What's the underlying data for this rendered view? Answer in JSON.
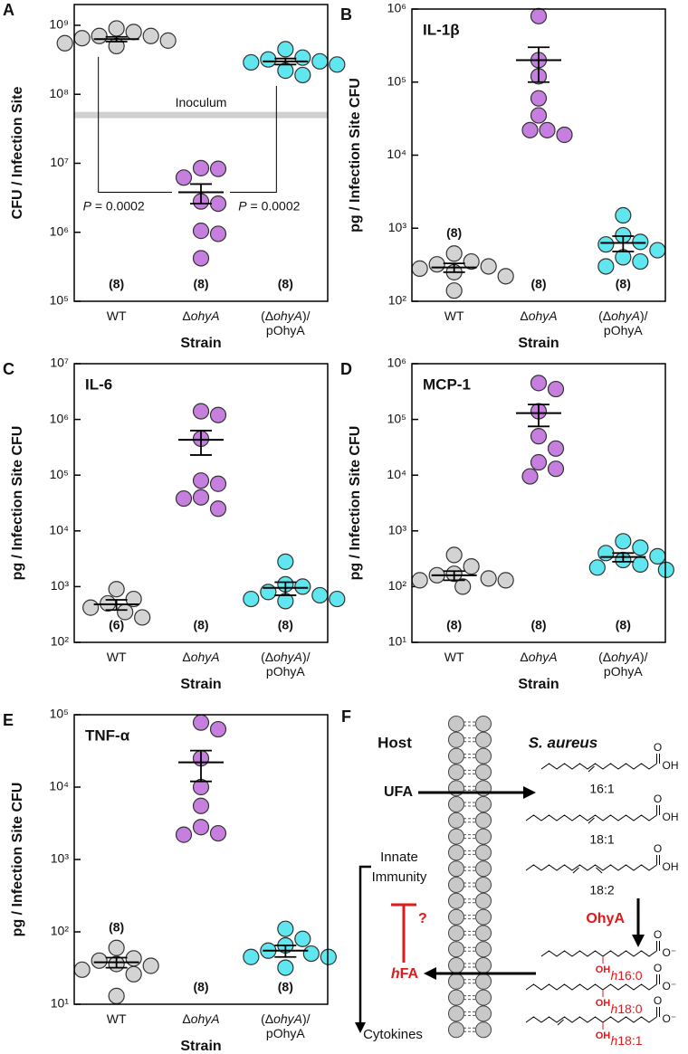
{
  "chart_data": [
    {
      "type": "scatter_mean_sem",
      "panel": "A",
      "y_label": "CFU / Infection Site",
      "x_label": "Strain",
      "categories": [
        "WT",
        "ΔohyA",
        "(ΔohyA)/pOhyA"
      ],
      "colors": [
        "#d3d3d3",
        "#c77fdf",
        "#5fe6ee"
      ],
      "points": [
        [
          900000000.0,
          800000000.0,
          700000000.0,
          700000000.0,
          650000000.0,
          600000000.0,
          550000000.0,
          500000000.0
        ],
        [
          8500000.0,
          8300000.0,
          6200000.0,
          2800000.0,
          2600000.0,
          1050000.0,
          950000.0,
          420000.0
        ],
        [
          450000000.0,
          340000000.0,
          320000000.0,
          300000000.0,
          290000000.0,
          270000000.0,
          220000000.0,
          190000000.0
        ]
      ],
      "means": [
        630000000.0,
        3800000.0,
        300000000.0
      ],
      "sems": [
        50000000.0,
        1200000.0,
        30000000.0
      ],
      "n_labels": [
        "(8)",
        "(8)",
        "(8)"
      ],
      "log_y": true,
      "ylim": [
        100000.0,
        2000000000.0
      ],
      "yticks": [
        {
          "value": 100000.0,
          "label": "10⁵"
        },
        {
          "value": 1000000.0,
          "label": "10⁶"
        },
        {
          "value": 10000000.0,
          "label": "10⁷"
        },
        {
          "value": 100000000.0,
          "label": "10⁸"
        },
        {
          "value": 1000000000.0,
          "label": "10⁹"
        }
      ],
      "reference_line": {
        "value": 50000000.0,
        "label": "Inoculum"
      },
      "annotations": [
        "P = 0.0002",
        "P = 0.0002"
      ]
    },
    {
      "type": "scatter_mean_sem",
      "panel": "B",
      "title": "IL-1β",
      "y_label": "pg / Infection Site CFU",
      "x_label": "Strain",
      "categories": [
        "WT",
        "ΔohyA",
        "(ΔohyA)/pOhyA"
      ],
      "colors": [
        "#d3d3d3",
        "#c77fdf",
        "#5fe6ee"
      ],
      "points": [
        [
          450,
          350,
          320,
          300,
          280,
          250,
          220,
          140
        ],
        [
          800000.0,
          200000.0,
          120000.0,
          60000.0,
          35000.0,
          22000.0,
          22000.0,
          19000.0
        ],
        [
          1500,
          800,
          650,
          600,
          500,
          400,
          350,
          300
        ]
      ],
      "means": [
        290,
        200000.0,
        630
      ],
      "sems": [
        40,
        100000.0,
        150
      ],
      "n_labels": [
        "(8)",
        "(8)",
        "(8)"
      ],
      "log_y": true,
      "ylim": [
        100.0,
        1000000.0
      ],
      "yticks": [
        {
          "value": 100.0,
          "label": "10²"
        },
        {
          "value": 1000.0,
          "label": "10³"
        },
        {
          "value": 10000.0,
          "label": "10⁴"
        },
        {
          "value": 100000.0,
          "label": "10⁵"
        },
        {
          "value": 1000000.0,
          "label": "10⁶"
        }
      ]
    },
    {
      "type": "scatter_mean_sem",
      "panel": "C",
      "title": "IL-6",
      "y_label": "pg / Infection Site CFU",
      "x_label": "Strain",
      "categories": [
        "WT",
        "ΔohyA",
        "(ΔohyA)/pOhyA"
      ],
      "colors": [
        "#d3d3d3",
        "#c77fdf",
        "#5fe6ee"
      ],
      "points": [
        [
          900,
          600,
          500,
          420,
          350,
          280
        ],
        [
          1400000.0,
          1200000.0,
          450000.0,
          80000.0,
          70000.0,
          40000.0,
          38000.0,
          25000.0
        ],
        [
          2800,
          1100,
          1000,
          800,
          700,
          600,
          600,
          550
        ]
      ],
      "means": [
        480,
        430000.0,
        950
      ],
      "sems": [
        100,
        200000.0,
        250
      ],
      "n_labels": [
        "(6)",
        "(8)",
        "(8)"
      ],
      "log_y": true,
      "ylim": [
        100.0,
        10000000.0
      ],
      "yticks": [
        {
          "value": 100.0,
          "label": "10²"
        },
        {
          "value": 1000.0,
          "label": "10³"
        },
        {
          "value": 10000.0,
          "label": "10⁴"
        },
        {
          "value": 100000.0,
          "label": "10⁵"
        },
        {
          "value": 1000000.0,
          "label": "10⁶"
        },
        {
          "value": 10000000.0,
          "label": "10⁷"
        }
      ]
    },
    {
      "type": "scatter_mean_sem",
      "panel": "D",
      "title": "MCP-1",
      "y_label": "pg / Infection Site CFU",
      "x_label": "Strain",
      "categories": [
        "WT",
        "ΔohyA",
        "(ΔohyA)/pOhyA"
      ],
      "colors": [
        "#d3d3d3",
        "#c77fdf",
        "#5fe6ee"
      ],
      "points": [
        [
          370,
          230,
          170,
          160,
          140,
          130,
          130,
          100
        ],
        [
          450000.0,
          350000.0,
          140000.0,
          50000.0,
          30000.0,
          17000.0,
          13000.0,
          9500.0
        ],
        [
          650,
          500,
          400,
          350,
          300,
          250,
          220,
          200
        ]
      ],
      "means": [
        160,
        130000.0,
        340
      ],
      "sems": [
        30,
        55000.0,
        60
      ],
      "n_labels": [
        "(8)",
        "(8)",
        "(8)"
      ],
      "log_y": true,
      "ylim": [
        10.0,
        1000000.0
      ],
      "yticks": [
        {
          "value": 10.0,
          "label": "10¹"
        },
        {
          "value": 100.0,
          "label": "10²"
        },
        {
          "value": 1000.0,
          "label": "10³"
        },
        {
          "value": 10000.0,
          "label": "10⁴"
        },
        {
          "value": 100000.0,
          "label": "10⁵"
        },
        {
          "value": 1000000.0,
          "label": "10⁶"
        }
      ]
    },
    {
      "type": "scatter_mean_sem",
      "panel": "E",
      "title": "TNF-α",
      "y_label": "pg / Infection Site CFU",
      "x_label": "Strain",
      "categories": [
        "WT",
        "ΔohyA",
        "(ΔohyA)/pOhyA"
      ],
      "colors": [
        "#d3d3d3",
        "#c77fdf",
        "#5fe6ee"
      ],
      "points": [
        [
          60,
          43,
          40,
          36,
          34,
          30,
          26,
          13
        ],
        [
          78000.0,
          63000.0,
          25000.0,
          10000.0,
          5500.0,
          2800.0,
          2300.0,
          2200.0
        ],
        [
          110,
          80,
          65,
          55,
          50,
          45,
          45,
          32
        ]
      ],
      "means": [
        38,
        22000.0,
        55
      ],
      "sems": [
        6,
        10000.0,
        10
      ],
      "n_labels": [
        "(8)",
        "(8)",
        "(8)"
      ],
      "log_y": true,
      "ylim": [
        10.0,
        100000.0
      ],
      "yticks": [
        {
          "value": 10.0,
          "label": "10¹"
        },
        {
          "value": 100.0,
          "label": "10²"
        },
        {
          "value": 1000.0,
          "label": "10³"
        },
        {
          "value": 10000.0,
          "label": "10⁴"
        },
        {
          "value": 100000.0,
          "label": "10⁵"
        }
      ]
    }
  ],
  "diagram": {
    "panel": "F",
    "host": "Host",
    "organism": "S. aureus",
    "ufa": "UFA",
    "fatty_acids": [
      "16:1",
      "18:1",
      "18:2"
    ],
    "enzyme": "OhyA",
    "hydroxy_fatty_acids": [
      "h16:0",
      "h18:0",
      "h18:1"
    ],
    "hydroxyl": "OH",
    "acid_o": "O",
    "acid_oh": "OH",
    "carboxylate_o": "O",
    "carboxylate_o_minus": "O⁻",
    "immunity": [
      "Innate",
      "Immunity"
    ],
    "hfa": "hFA",
    "question": "?",
    "cytokines": "Cytokines"
  }
}
